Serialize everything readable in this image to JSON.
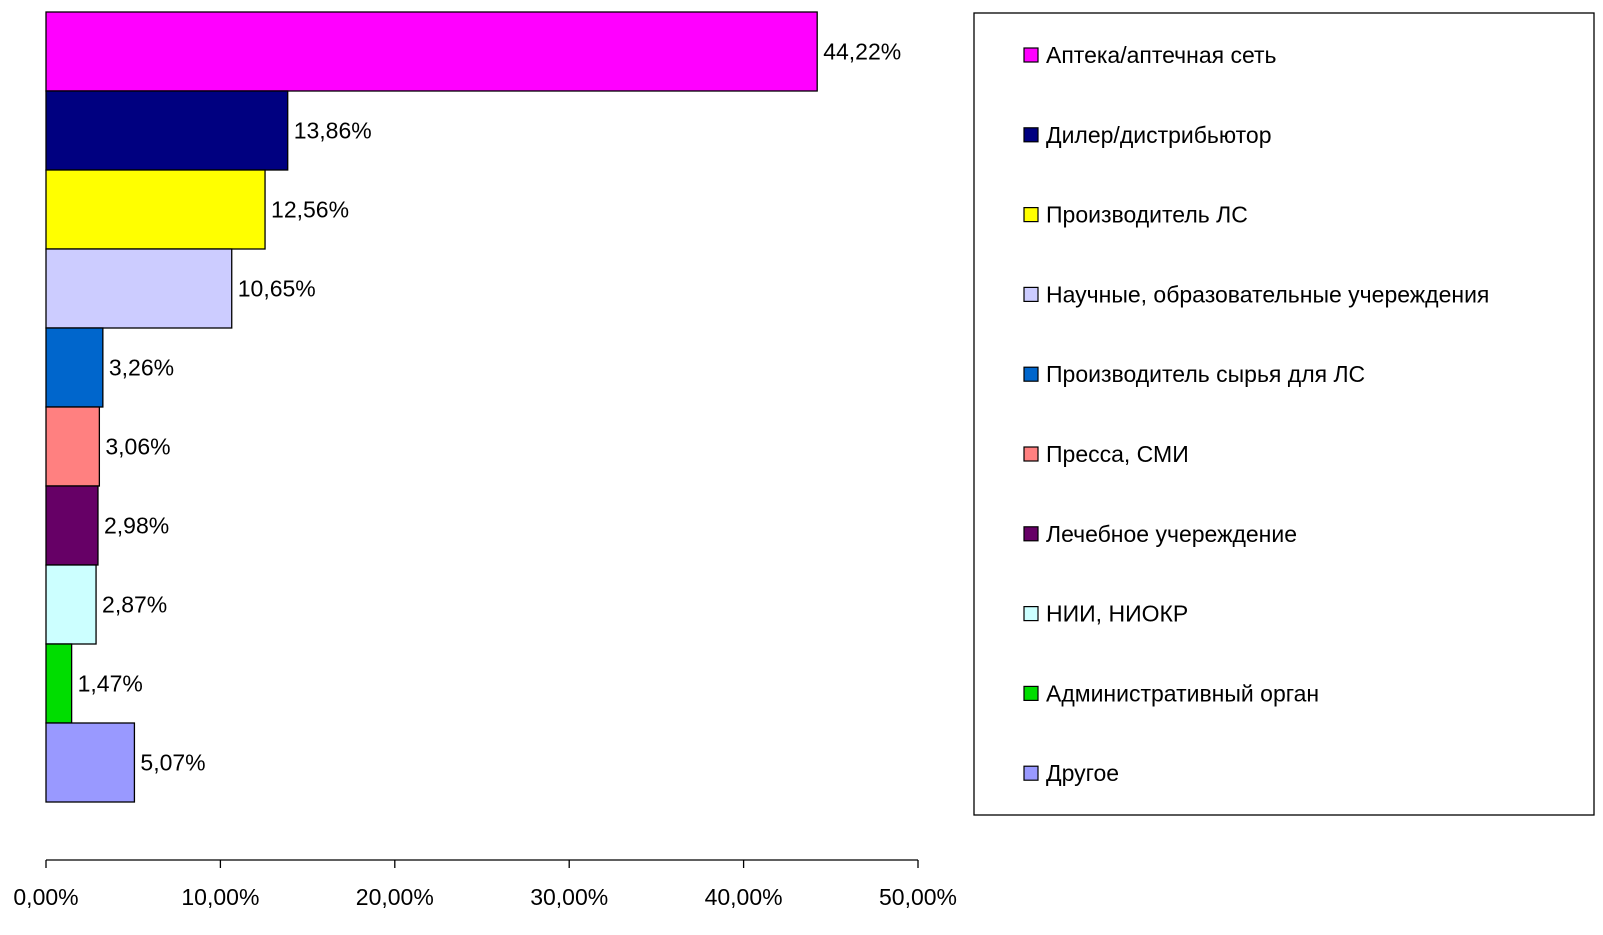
{
  "chart_data": {
    "type": "bar",
    "orientation": "horizontal",
    "categories": [
      "Аптека/аптечная сеть",
      "Дилер/дистрибьютор",
      "Производитель ЛС",
      "Научные, образовательные учереждения",
      "Производитель сырья для ЛС",
      "Пресса, СМИ",
      "Лечебное учереждение",
      "НИИ, НИОКР",
      "Административный орган",
      "Другое"
    ],
    "values": [
      44.22,
      13.86,
      12.56,
      10.65,
      3.26,
      3.06,
      2.98,
      2.87,
      1.47,
      5.07
    ],
    "value_labels": [
      "44,22%",
      "13,86%",
      "12,56%",
      "10,65%",
      "3,26%",
      "3,06%",
      "2,98%",
      "2,87%",
      "1,47%",
      "5,07%"
    ],
    "colors": [
      "#FF00FF",
      "#000080",
      "#FFFF00",
      "#CCCCFF",
      "#0066CC",
      "#FF8080",
      "#660066",
      "#CCFFFF",
      "#00DD00",
      "#9999FF"
    ],
    "xlim": [
      0,
      50
    ],
    "xticks": [
      0,
      10,
      20,
      30,
      40,
      50
    ],
    "xtick_labels": [
      "0,00%",
      "10,00%",
      "20,00%",
      "30,00%",
      "40,00%",
      "50,00%"
    ],
    "grid": false,
    "legend_position": "right",
    "title": "",
    "xlabel": "",
    "ylabel": ""
  }
}
